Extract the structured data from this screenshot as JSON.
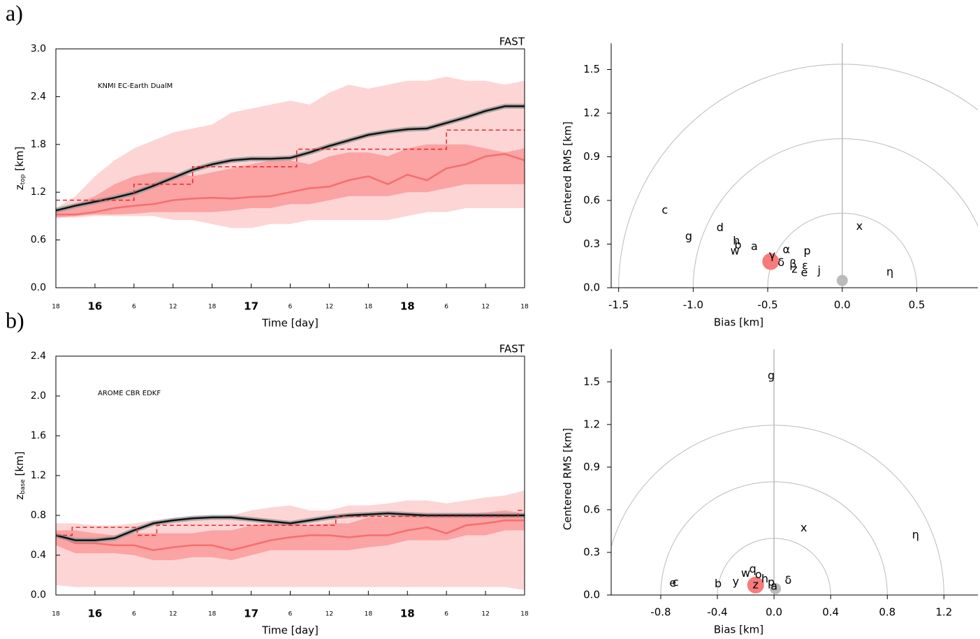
{
  "chart_data": [
    {
      "type": "line",
      "panel": "a)",
      "corner_label": "FAST",
      "ylabel": {
        "main": "z",
        "sub": "top",
        "unit": " [km]"
      },
      "xlabel": "Time  [day]",
      "xlim": [
        0,
        72
      ],
      "ylim": [
        0,
        3.0
      ],
      "xticks": [
        {
          "value": 0,
          "label": "18"
        },
        {
          "value": 6,
          "label": "16",
          "bold": true
        },
        {
          "value": 12,
          "label": "6"
        },
        {
          "value": 18,
          "label": "12"
        },
        {
          "value": 24,
          "label": "18"
        },
        {
          "value": 30,
          "label": "17",
          "bold": true
        },
        {
          "value": 36,
          "label": "6"
        },
        {
          "value": 42,
          "label": "12"
        },
        {
          "value": 48,
          "label": "18"
        },
        {
          "value": 54,
          "label": "18",
          "bold": true
        },
        {
          "value": 60,
          "label": "6"
        },
        {
          "value": 66,
          "label": "12"
        },
        {
          "value": 72,
          "label": "18"
        }
      ],
      "yticks": [
        {
          "value": 0,
          "label": "0.0"
        },
        {
          "value": 0.6,
          "label": "0.6"
        },
        {
          "value": 1.2,
          "label": "1.2"
        },
        {
          "value": 1.8,
          "label": "1.8"
        },
        {
          "value": 2.4,
          "label": "2.4"
        },
        {
          "value": 3,
          "label": "3.0"
        }
      ],
      "x": [
        0,
        3,
        6,
        9,
        12,
        15,
        18,
        21,
        24,
        27,
        30,
        33,
        36,
        39,
        42,
        45,
        48,
        51,
        54,
        57,
        60,
        63,
        66,
        69,
        72
      ],
      "bands": [
        {
          "color": "#fdd5d5",
          "high": [
            1.0,
            1.15,
            1.4,
            1.6,
            1.75,
            1.85,
            1.95,
            2.0,
            2.05,
            2.2,
            2.25,
            2.3,
            2.35,
            2.3,
            2.45,
            2.55,
            2.5,
            2.55,
            2.6,
            2.6,
            2.65,
            2.6,
            2.6,
            2.55,
            2.6
          ],
          "low": [
            0.88,
            0.88,
            0.9,
            0.9,
            0.9,
            0.9,
            0.85,
            0.85,
            0.8,
            0.75,
            0.75,
            0.8,
            0.8,
            0.85,
            0.85,
            0.85,
            0.85,
            0.85,
            0.9,
            0.95,
            0.95,
            1.0,
            1.0,
            1.0,
            1.0
          ]
        },
        {
          "color": "#fca3a3",
          "high": [
            0.95,
            1.05,
            1.15,
            1.3,
            1.4,
            1.45,
            1.45,
            1.4,
            1.45,
            1.5,
            1.55,
            1.6,
            1.6,
            1.55,
            1.65,
            1.7,
            1.7,
            1.65,
            1.75,
            1.8,
            1.8,
            1.8,
            1.75,
            1.7,
            1.75
          ],
          "low": [
            0.88,
            0.9,
            0.92,
            0.92,
            0.93,
            0.95,
            0.95,
            0.95,
            0.95,
            0.97,
            1.0,
            1.0,
            1.05,
            1.05,
            1.1,
            1.15,
            1.15,
            1.15,
            1.2,
            1.2,
            1.25,
            1.3,
            1.3,
            1.3,
            1.3
          ]
        }
      ],
      "series": [
        {
          "name": "KNMI EC-Earth DualM",
          "color": "#f46f6f",
          "values": [
            0.92,
            0.92,
            0.95,
            1.0,
            1.03,
            1.05,
            1.1,
            1.12,
            1.13,
            1.12,
            1.14,
            1.15,
            1.2,
            1.25,
            1.27,
            1.35,
            1.4,
            1.3,
            1.42,
            1.35,
            1.5,
            1.55,
            1.65,
            1.68,
            1.6
          ]
        },
        {
          "color": "#111111",
          "halo": "#999999",
          "values": [
            0.97,
            1.03,
            1.08,
            1.13,
            1.19,
            1.28,
            1.38,
            1.48,
            1.55,
            1.6,
            1.62,
            1.62,
            1.63,
            1.7,
            1.78,
            1.85,
            1.92,
            1.96,
            1.99,
            2.0,
            2.07,
            2.14,
            2.22,
            2.28,
            2.28
          ]
        },
        {
          "color": "#e8252a",
          "dashed": true,
          "step": true,
          "x": [
            0,
            12,
            21,
            37,
            60,
            72
          ],
          "values": [
            1.1,
            1.3,
            1.52,
            1.74,
            1.98,
            1.98
          ]
        }
      ]
    },
    {
      "type": "scatter",
      "xlabel": "Bias  [km]",
      "ylabel": "Centered RMS  [km]",
      "xlim": [
        -1.55,
        0.91
      ],
      "ylim": [
        0,
        1.68
      ],
      "arcs": [
        0.5,
        1.0,
        1.5
      ],
      "zero_line": true,
      "xticks": [
        {
          "value": -1.5,
          "label": "-1.5"
        },
        {
          "value": -1.0,
          "label": "-1.0"
        },
        {
          "value": -0.5,
          "label": "-0.5"
        },
        {
          "value": 0,
          "label": "0.0"
        },
        {
          "value": 0.5,
          "label": "0.5"
        }
      ],
      "yticks": [
        {
          "value": 0,
          "label": "0.0"
        },
        {
          "value": 0.3,
          "label": "0.3"
        },
        {
          "value": 0.6,
          "label": "0.6"
        },
        {
          "value": 0.9,
          "label": "0.9"
        },
        {
          "value": 1.2,
          "label": "1.2"
        },
        {
          "value": 1.5,
          "label": "1.5"
        }
      ],
      "series": [
        {
          "marker": "circle",
          "x": [
            -0.48,
            0.0
          ],
          "values": [
            0.18,
            0.05
          ],
          "colors": [
            "#f77b7b",
            "#bbbbbb"
          ],
          "sizes": [
            12,
            8
          ]
        },
        {
          "marker": "text",
          "labels": [
            "c",
            "g",
            "d",
            "h",
            "b",
            "w",
            "a",
            "γ",
            "δ",
            "α",
            "p",
            "β",
            "z",
            "ε",
            "e",
            "j",
            "x",
            "η"
          ],
          "x": [
            -1.19,
            -1.03,
            -0.82,
            -0.71,
            -0.7,
            -0.72,
            -0.59,
            -0.47,
            -0.41,
            -0.375,
            -0.235,
            -0.33,
            -0.32,
            -0.25,
            -0.255,
            -0.155,
            0.115,
            0.32
          ],
          "values": [
            0.53,
            0.35,
            0.41,
            0.32,
            0.29,
            0.25,
            0.28,
            0.22,
            0.17,
            0.26,
            0.25,
            0.16,
            0.125,
            0.15,
            0.1,
            0.115,
            0.42,
            0.105
          ],
          "colors": [
            "#000",
            "#000",
            "#857a00",
            "#000",
            "#000",
            "#000",
            "#000",
            "#000",
            "#000",
            "#000",
            "#000",
            "#857a00",
            "#000",
            "#000",
            "#000",
            "#000",
            "#000",
            "#000"
          ]
        }
      ]
    },
    {
      "type": "line",
      "panel": "b)",
      "corner_label": "FAST",
      "ylabel": {
        "main": "z",
        "sub": "base",
        "unit": " [km]"
      },
      "xlabel": "Time  [day]",
      "xlim": [
        0,
        72
      ],
      "ylim": [
        0,
        2.4
      ],
      "xticks": [
        {
          "value": 0,
          "label": "18"
        },
        {
          "value": 6,
          "label": "16",
          "bold": true
        },
        {
          "value": 12,
          "label": "6"
        },
        {
          "value": 18,
          "label": "12"
        },
        {
          "value": 24,
          "label": "18"
        },
        {
          "value": 30,
          "label": "17",
          "bold": true
        },
        {
          "value": 36,
          "label": "6"
        },
        {
          "value": 42,
          "label": "12"
        },
        {
          "value": 48,
          "label": "18"
        },
        {
          "value": 54,
          "label": "18",
          "bold": true
        },
        {
          "value": 60,
          "label": "6"
        },
        {
          "value": 66,
          "label": "12"
        },
        {
          "value": 72,
          "label": "18"
        }
      ],
      "yticks": [
        {
          "value": 0,
          "label": "0.0"
        },
        {
          "value": 0.4,
          "label": "0.4"
        },
        {
          "value": 0.8,
          "label": "0.8"
        },
        {
          "value": 1.2,
          "label": "1.2"
        },
        {
          "value": 1.6,
          "label": "1.6"
        },
        {
          "value": 2.0,
          "label": "2.0"
        },
        {
          "value": 2.4,
          "label": "2.4"
        }
      ],
      "x": [
        0,
        3,
        6,
        9,
        12,
        15,
        18,
        21,
        24,
        27,
        30,
        33,
        36,
        39,
        42,
        45,
        48,
        51,
        54,
        57,
        60,
        63,
        66,
        69,
        72
      ],
      "bands": [
        {
          "color": "#fdd5d5",
          "high": [
            0.72,
            0.72,
            0.7,
            0.7,
            0.72,
            0.75,
            0.75,
            0.78,
            0.78,
            0.8,
            0.85,
            0.88,
            0.9,
            0.85,
            0.85,
            0.9,
            0.9,
            0.92,
            0.95,
            0.95,
            0.92,
            0.95,
            0.98,
            1.0,
            1.05
          ],
          "low": [
            0.1,
            0.08,
            0.08,
            0.08,
            0.08,
            0.08,
            0.08,
            0.08,
            0.08,
            0.08,
            0.08,
            0.08,
            0.08,
            0.08,
            0.08,
            0.08,
            0.08,
            0.08,
            0.08,
            0.08,
            0.08,
            0.08,
            0.08,
            0.08,
            0.05
          ]
        },
        {
          "color": "#fca3a3",
          "high": [
            0.65,
            0.65,
            0.62,
            0.6,
            0.62,
            0.62,
            0.62,
            0.62,
            0.65,
            0.65,
            0.7,
            0.72,
            0.72,
            0.7,
            0.72,
            0.72,
            0.78,
            0.78,
            0.8,
            0.82,
            0.82,
            0.82,
            0.83,
            0.85,
            0.82
          ],
          "low": [
            0.5,
            0.42,
            0.42,
            0.42,
            0.4,
            0.35,
            0.35,
            0.38,
            0.38,
            0.35,
            0.4,
            0.45,
            0.45,
            0.45,
            0.45,
            0.45,
            0.48,
            0.5,
            0.55,
            0.55,
            0.55,
            0.6,
            0.6,
            0.65,
            0.65
          ]
        }
      ],
      "series": [
        {
          "name": "AROME CBR EDKF",
          "color": "#f46f6f",
          "values": [
            0.6,
            0.52,
            0.52,
            0.5,
            0.5,
            0.45,
            0.48,
            0.5,
            0.5,
            0.45,
            0.5,
            0.55,
            0.58,
            0.6,
            0.6,
            0.58,
            0.6,
            0.6,
            0.65,
            0.68,
            0.62,
            0.7,
            0.72,
            0.75,
            0.75
          ]
        },
        {
          "color": "#111111",
          "halo": "#999999",
          "values": [
            0.6,
            0.55,
            0.55,
            0.57,
            0.65,
            0.72,
            0.75,
            0.77,
            0.78,
            0.78,
            0.76,
            0.74,
            0.72,
            0.75,
            0.78,
            0.8,
            0.81,
            0.82,
            0.81,
            0.8,
            0.8,
            0.8,
            0.8,
            0.8,
            0.8
          ]
        },
        {
          "color": "#e8252a",
          "dashed": true,
          "step": true,
          "x": [
            0,
            2.5,
            12.5,
            15.5,
            43,
            71,
            72
          ],
          "values": [
            0.6,
            0.68,
            0.6,
            0.7,
            0.79,
            0.85,
            0.85
          ]
        }
      ]
    },
    {
      "type": "scatter",
      "xlabel": "Bias  [km]",
      "ylabel": "Centered RMS  [km]",
      "xlim": [
        -1.15,
        1.44
      ],
      "ylim": [
        0,
        1.73
      ],
      "arcs": [
        0.4,
        0.8,
        1.2
      ],
      "zero_line": true,
      "xticks": [
        {
          "value": -0.8,
          "label": "-0.8"
        },
        {
          "value": -0.4,
          "label": "-0.4"
        },
        {
          "value": 0,
          "label": "0.0"
        },
        {
          "value": 0.4,
          "label": "0.4"
        },
        {
          "value": 0.8,
          "label": "0.8"
        },
        {
          "value": 1.2,
          "label": "1.2"
        }
      ],
      "yticks": [
        {
          "value": 0,
          "label": "0.0"
        },
        {
          "value": 0.3,
          "label": "0.3"
        },
        {
          "value": 0.6,
          "label": "0.6"
        },
        {
          "value": 0.9,
          "label": "0.9"
        },
        {
          "value": 1.2,
          "label": "1.2"
        },
        {
          "value": 1.5,
          "label": "1.5"
        }
      ],
      "series": [
        {
          "marker": "circle",
          "x": [
            -0.13,
            0.01
          ],
          "values": [
            0.07,
            0.045
          ],
          "colors": [
            "#f77b7b",
            "#bbbbbb"
          ],
          "sizes": [
            12,
            8
          ]
        },
        {
          "marker": "text",
          "labels": [
            "g",
            "x",
            "η",
            "e",
            "c",
            "b",
            "y",
            "q",
            "w",
            "o",
            "h",
            "p",
            "a",
            "δ",
            "z"
          ],
          "x": [
            -0.02,
            0.21,
            1.0,
            -0.715,
            -0.695,
            -0.395,
            -0.27,
            -0.15,
            -0.2,
            -0.11,
            -0.065,
            -0.02,
            0.0,
            0.1,
            -0.13
          ],
          "values": [
            1.54,
            0.47,
            0.42,
            0.08,
            0.085,
            0.075,
            0.09,
            0.18,
            0.15,
            0.14,
            0.11,
            0.085,
            0.06,
            0.1,
            0.07
          ],
          "colors": [
            "#000",
            "#000",
            "#000",
            "#857a00",
            "#000",
            "#000",
            "#000",
            "#000",
            "#000",
            "#000",
            "#000",
            "#000",
            "#000",
            "#000",
            "#000"
          ]
        }
      ]
    }
  ]
}
